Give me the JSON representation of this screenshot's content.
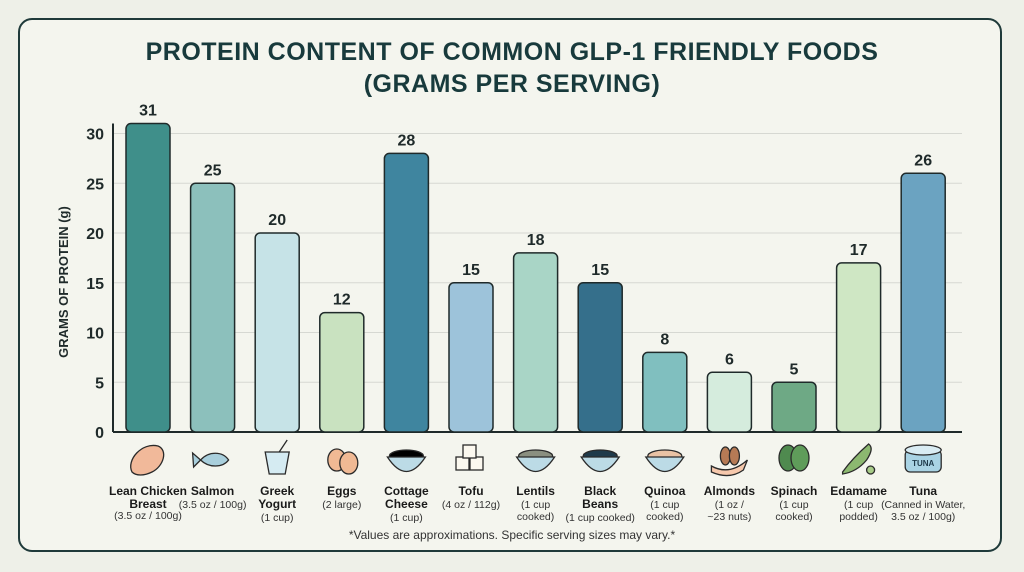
{
  "chart_data": {
    "type": "bar",
    "title": "PROTEIN CONTENT OF COMMON GLP-1 FRIENDLY FOODS",
    "subtitle": "(GRAMS PER SERVING)",
    "ylabel": "GRAMS OF PROTEIN (g)",
    "xlabel": "",
    "ylim": [
      0,
      32
    ],
    "yticks": [
      0,
      5,
      10,
      15,
      20,
      25,
      30
    ],
    "grid": true,
    "categories": [
      {
        "name": [
          "Lean Chicken",
          "Breast"
        ],
        "serving": [
          "(3.5 oz / 100g)"
        ],
        "icon": "chicken-breast-icon"
      },
      {
        "name": [
          "Salmon"
        ],
        "serving": [
          "(3.5 oz / 100g)"
        ],
        "icon": "fish-icon"
      },
      {
        "name": [
          "Greek",
          "Yogurt"
        ],
        "serving": [
          "(1 cup)"
        ],
        "icon": "yogurt-cup-icon"
      },
      {
        "name": [
          "Eggs"
        ],
        "serving": [
          "(2 large)"
        ],
        "icon": "eggs-icon"
      },
      {
        "name": [
          "Cottage",
          "Cheese"
        ],
        "serving": [
          "(1 cup)"
        ],
        "icon": "cottage-cheese-bowl-icon"
      },
      {
        "name": [
          "Tofu"
        ],
        "serving": [
          "(4 oz / 112g)"
        ],
        "icon": "tofu-cubes-icon"
      },
      {
        "name": [
          "Lentils"
        ],
        "serving": [
          "(1 cup",
          "cooked)"
        ],
        "icon": "lentils-bowl-icon"
      },
      {
        "name": [
          "Black",
          "Beans"
        ],
        "serving": [
          "(1 cup cooked)"
        ],
        "icon": "black-beans-bowl-icon"
      },
      {
        "name": [
          "Quinoa"
        ],
        "serving": [
          "(1 cup",
          "cooked)"
        ],
        "icon": "quinoa-bowl-icon"
      },
      {
        "name": [
          "Almonds"
        ],
        "serving": [
          "(1 oz /",
          "~23 nuts)"
        ],
        "icon": "almonds-hand-icon"
      },
      {
        "name": [
          "Spinach"
        ],
        "serving": [
          "(1 cup",
          "cooked)"
        ],
        "icon": "spinach-leaves-icon"
      },
      {
        "name": [
          "Edamame"
        ],
        "serving": [
          "(1 cup",
          "podded)"
        ],
        "icon": "edamame-pod-icon"
      },
      {
        "name": [
          "Tuna"
        ],
        "serving": [
          "(Canned in Water,",
          "3.5 oz / 100g)"
        ],
        "icon": "tuna-can-icon",
        "icon_text": "TUNA"
      }
    ],
    "values": [
      31,
      25,
      20,
      12,
      28,
      15,
      18,
      15,
      8,
      6,
      5,
      17,
      26
    ],
    "colors": [
      "#3f8f8a",
      "#8cc0bc",
      "#c6e3e7",
      "#c9e2c0",
      "#3f859f",
      "#9dc3da",
      "#a9d5c6",
      "#356f8b",
      "#80bfbf",
      "#d5ecdd",
      "#6ea985",
      "#cfe7c4",
      "#6ba3c1"
    ],
    "footnote": "*Values are approximations. Specific serving sizes may vary.*"
  }
}
